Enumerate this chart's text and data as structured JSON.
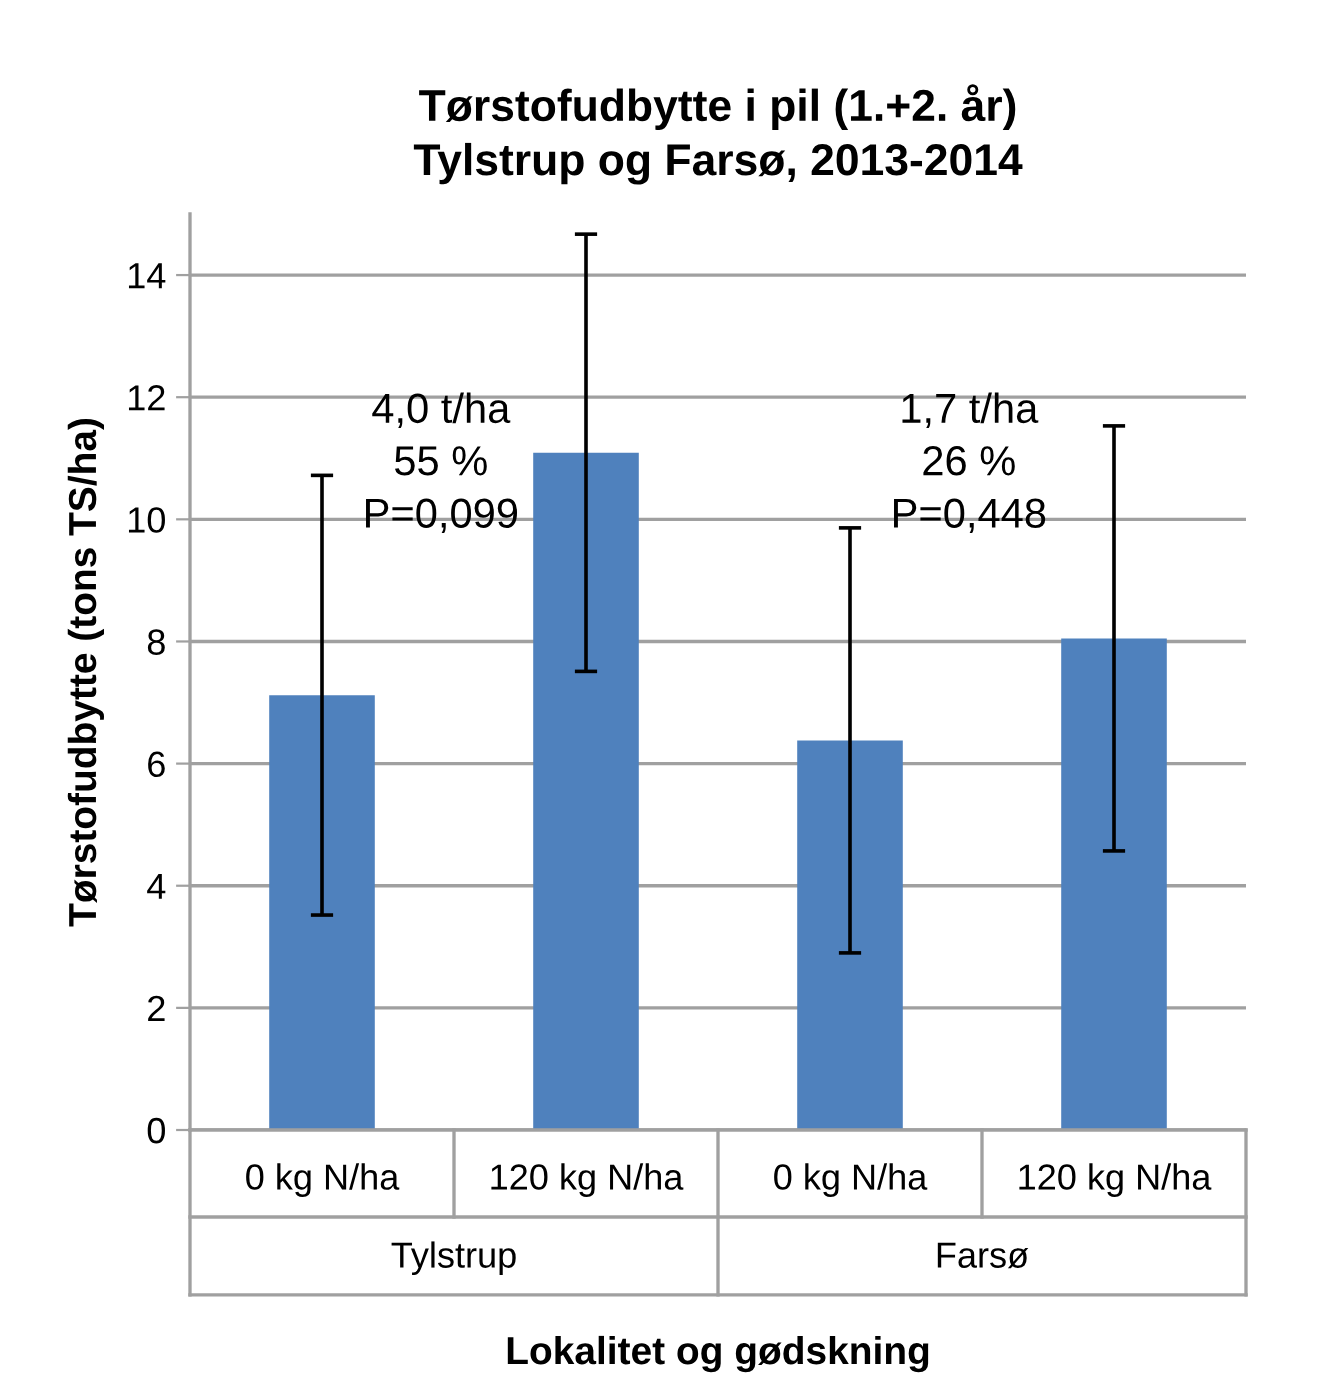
{
  "chart_data": {
    "type": "bar",
    "title": "Tørstofudbytte i pil (1.+2. år)\nTylstrup og Farsø, 2013-2014",
    "xlabel": "Lokalitet og gødskning",
    "ylabel": "Tørstofudbytte (tons TS/ha)",
    "categories": [
      "0 kg N/ha",
      "120 kg N/ha",
      "0 kg N/ha",
      "120 kg N/ha"
    ],
    "values": [
      7.12,
      11.09,
      6.38,
      8.05
    ],
    "errors": [
      3.6,
      3.58,
      3.48,
      3.48
    ],
    "color": "#4f81bd",
    "ylim": [
      0,
      15
    ],
    "yticks": [
      0,
      2,
      4,
      6,
      8,
      10,
      12,
      14
    ],
    "grid": "y",
    "annotations": [
      "4,0 t/ha\n55 %\nP=0,099",
      "1,7 t/ha\n26 %\nP=0,448",
      "Tylstrup",
      "Farsø"
    ]
  }
}
